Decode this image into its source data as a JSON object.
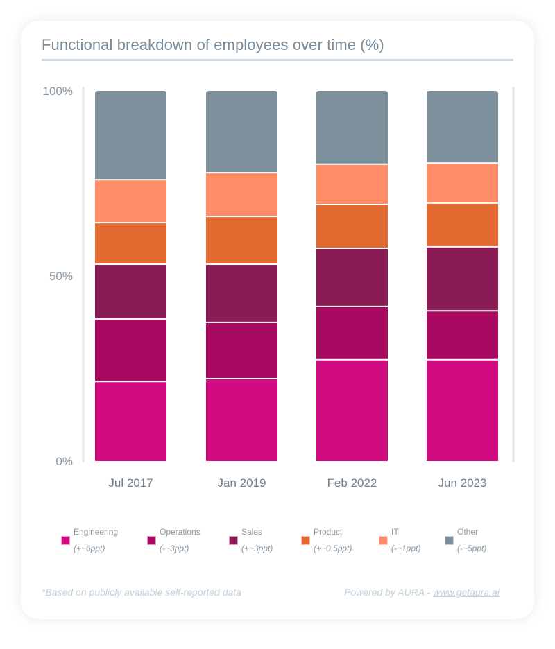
{
  "chart_data": {
    "type": "bar",
    "stacked": true,
    "title": "Functional breakdown of employees over time (%)",
    "categories": [
      "Jul 2017",
      "Jan 2019",
      "Feb 2022",
      "Jun 2023"
    ],
    "ylim": [
      0,
      100
    ],
    "yticks": [
      "0%",
      "50%",
      "100%"
    ],
    "grid": false,
    "legend_position": "bottom",
    "series": [
      {
        "name": "Engineering",
        "delta": "(+~6ppt)",
        "color": "#d10c80",
        "values": [
          21.3,
          22.1,
          27.2,
          27.2
        ]
      },
      {
        "name": "Operations",
        "delta": "(-~3ppt)",
        "color": "#a80961",
        "values": [
          16.9,
          15.2,
          14.4,
          13.2
        ]
      },
      {
        "name": "Sales",
        "delta": "(+~3ppt)",
        "color": "#8b1b55",
        "values": [
          14.8,
          15.7,
          15.7,
          17.3
        ]
      },
      {
        "name": "Product",
        "delta": "(+~0.5ppt)",
        "color": "#e36a30",
        "values": [
          11.2,
          12.9,
          11.8,
          11.8
        ]
      },
      {
        "name": "IT",
        "delta": "(-~1ppt)",
        "color": "#ff8c66",
        "values": [
          11.6,
          11.8,
          10.9,
          10.8
        ]
      },
      {
        "name": "Other",
        "delta": "(-~5ppt)",
        "color": "#7d8f9b",
        "values": [
          24.2,
          22.3,
          20.0,
          19.7
        ]
      }
    ]
  },
  "footer": {
    "note": "*Based on publicly available self-reported data",
    "powered_by": "Powered by AURA - ",
    "link": "www.getaura.ai"
  }
}
